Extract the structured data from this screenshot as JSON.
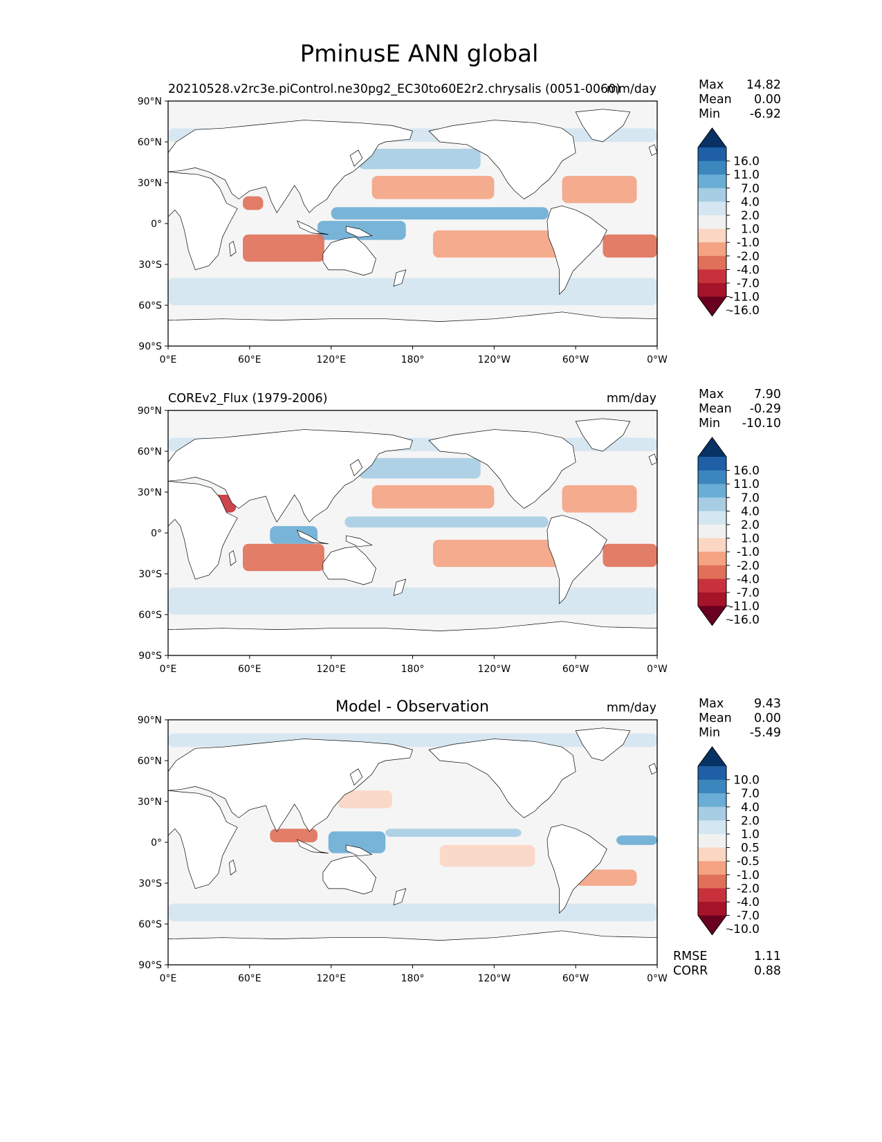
{
  "figure": {
    "title": "PminusE ANN global"
  },
  "colors": {
    "ocean_bg": "#f5f5f5",
    "land": "#ffffff",
    "frame": "#000000",
    "scale_bright": [
      "#6a001f",
      "#a51429",
      "#c8313b",
      "#e07059",
      "#f4a383",
      "#fbd6c3",
      "#f1f1f1",
      "#d4e6f1",
      "#a6cde3",
      "#6aadd5",
      "#3c86be",
      "#1e5fa5",
      "#083263"
    ]
  },
  "labels": {
    "lat_ticks": [
      "90°N",
      "60°N",
      "30°N",
      "0°",
      "30°S",
      "60°S",
      "90°S"
    ],
    "lon_ticks": [
      "0°E",
      "60°E",
      "120°E",
      "180°",
      "120°W",
      "60°W",
      "0°W"
    ],
    "stat_max": "Max",
    "stat_mean": "Mean",
    "stat_min": "Min",
    "rmse": "RMSE",
    "corr": "CORR"
  },
  "panels": [
    {
      "left_title": "20210528.v2rc3e.piControl.ne30pg2_EC30to60E2r2.chrysalis (0051-0060)",
      "center_title": "",
      "units": "mm/day",
      "max": "14.82",
      "mean": "0.00",
      "min": "-6.92",
      "levels": [
        "16.0",
        "11.0",
        "7.0",
        "4.0",
        "2.0",
        "1.0",
        "-1.0",
        "-2.0",
        "-4.0",
        "-7.0",
        "-11.0",
        "-16.0"
      ]
    },
    {
      "left_title": "COREv2_Flux (1979-2006)",
      "center_title": "",
      "units": "mm/day",
      "max": "7.90",
      "mean": "-0.29",
      "min": "-10.10",
      "levels": [
        "16.0",
        "11.0",
        "7.0",
        "4.0",
        "2.0",
        "1.0",
        "-1.0",
        "-2.0",
        "-4.0",
        "-7.0",
        "-11.0",
        "-16.0"
      ]
    },
    {
      "left_title": "",
      "center_title": "Model - Observation",
      "units": "mm/day",
      "max": "9.43",
      "mean": "0.00",
      "min": "-5.49",
      "levels": [
        "10.0",
        "7.0",
        "4.0",
        "2.0",
        "1.0",
        "0.5",
        "-0.5",
        "-1.0",
        "-2.0",
        "-4.0",
        "-7.0",
        "-10.0"
      ],
      "rmse": "1.11",
      "corr": "0.88"
    }
  ],
  "chart_data": {
    "type": "heatmap",
    "title": "PminusE ANN global",
    "variable": "PminusE",
    "season": "ANN",
    "region": "global",
    "units": "mm/day",
    "xlim": [
      0,
      360
    ],
    "ylim": [
      -90,
      90
    ],
    "xticks": [
      "0°E",
      "60°E",
      "120°E",
      "180°",
      "120°W",
      "60°W",
      "0°W"
    ],
    "yticks": [
      "90°N",
      "60°N",
      "30°N",
      "0°",
      "30°S",
      "60°S",
      "90°S"
    ],
    "panels": [
      {
        "name": "20210528.v2rc3e.piControl.ne30pg2_EC30to60E2r2.chrysalis (0051-0060)",
        "max": 14.82,
        "mean": 0.0,
        "min": -6.92,
        "contour_levels": [
          -16,
          -11,
          -7,
          -4,
          -2,
          -1,
          1,
          2,
          4,
          7,
          11,
          16
        ]
      },
      {
        "name": "COREv2_Flux (1979-2006)",
        "max": 7.9,
        "mean": -0.29,
        "min": -10.1,
        "contour_levels": [
          -16,
          -11,
          -7,
          -4,
          -2,
          -1,
          1,
          2,
          4,
          7,
          11,
          16
        ]
      },
      {
        "name": "Model - Observation",
        "max": 9.43,
        "mean": 0.0,
        "min": -5.49,
        "contour_levels": [
          -10,
          -7,
          -4,
          -2,
          -1,
          -0.5,
          0.5,
          1,
          2,
          4,
          7,
          10
        ],
        "rmse": 1.11,
        "corr": 0.88
      }
    ]
  }
}
